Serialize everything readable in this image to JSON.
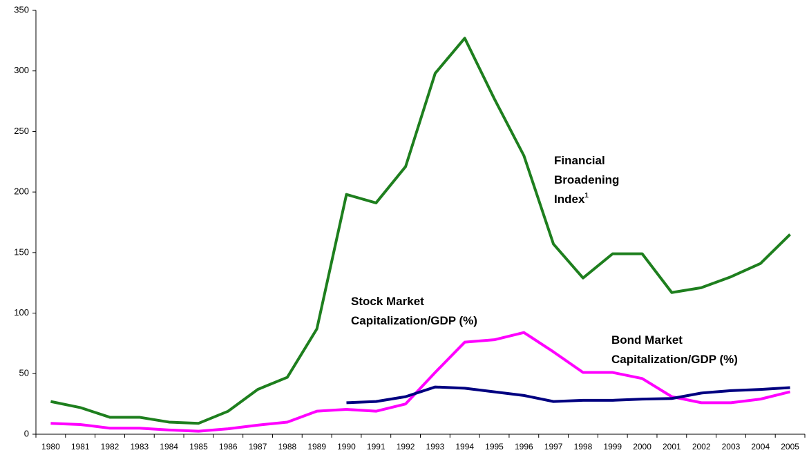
{
  "chart_data": {
    "type": "line",
    "categories": [
      "1980",
      "1981",
      "1982",
      "1983",
      "1984",
      "1985",
      "1986",
      "1987",
      "1988",
      "1989",
      "1990",
      "1991",
      "1992",
      "1993",
      "1994",
      "1995",
      "1996",
      "1997",
      "1998",
      "1999",
      "2000",
      "2001",
      "2002",
      "2003",
      "2004",
      "2005"
    ],
    "ylim": [
      0,
      350
    ],
    "yticks": [
      0,
      50,
      100,
      150,
      200,
      250,
      300,
      350
    ],
    "grid": false,
    "series": [
      {
        "label": [
          "Financial",
          "Broadening",
          "Index"
        ],
        "footnote": "1",
        "color": "#1e7f1e",
        "values": [
          27,
          22,
          14,
          14,
          10,
          9,
          19,
          37,
          47,
          87,
          198,
          191,
          221,
          298,
          327,
          277,
          230,
          157,
          129,
          149,
          149,
          117,
          121,
          130,
          141,
          165
        ]
      },
      {
        "label": [
          "Stock Market",
          "Capitalization/GDP (%)"
        ],
        "color": "#ff00ff",
        "values": [
          9,
          8,
          5,
          5,
          3.5,
          2.5,
          4.5,
          7.5,
          10,
          19,
          20.5,
          19,
          25,
          51,
          76,
          78,
          84,
          68,
          51,
          51,
          46,
          31,
          26,
          26,
          29,
          35
        ]
      },
      {
        "label": [
          "Bond Market",
          "Capitalization/GDP (%)"
        ],
        "color": "#000080",
        "values": [
          null,
          null,
          null,
          null,
          null,
          null,
          null,
          null,
          null,
          null,
          26,
          27,
          31,
          39,
          38,
          35,
          32,
          27,
          28,
          28,
          29,
          29.5,
          34,
          36,
          37,
          38.5
        ]
      }
    ]
  }
}
